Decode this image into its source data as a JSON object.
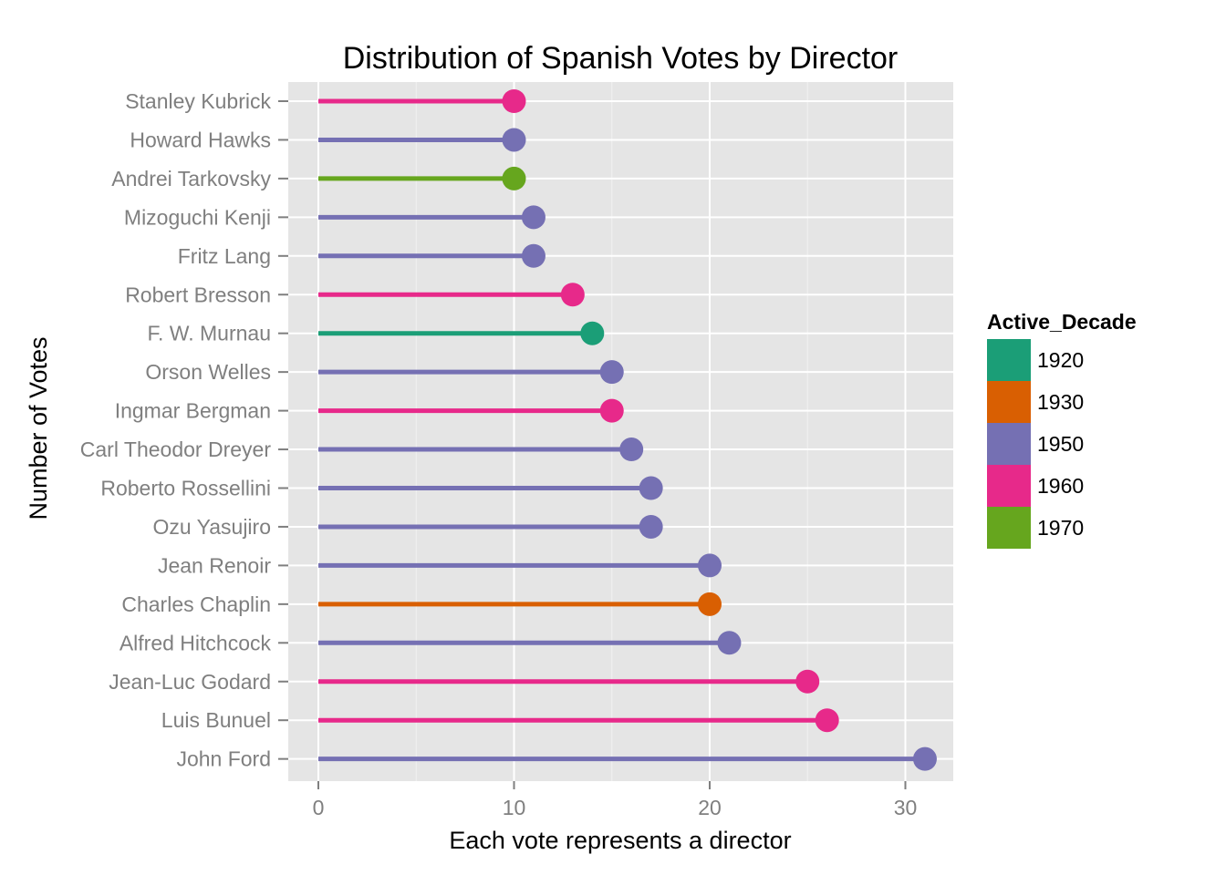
{
  "chart_data": {
    "type": "lollipop",
    "title": "Distribution of Spanish Votes by Director",
    "xlabel": "Each vote represents a director",
    "ylabel": "Number of Votes",
    "xlim": [
      0,
      32
    ],
    "x_ticks": [
      "0",
      "10",
      "20",
      "30"
    ],
    "grid": true,
    "legend": {
      "title": "Active_Decade",
      "position": "right",
      "entries": [
        {
          "label": "1920",
          "color": "#1B9E77"
        },
        {
          "label": "1930",
          "color": "#D95F02"
        },
        {
          "label": "1950",
          "color": "#7570B3"
        },
        {
          "label": "1960",
          "color": "#E7298A"
        },
        {
          "label": "1970",
          "color": "#66A61E"
        }
      ]
    },
    "points": [
      {
        "director": "Stanley Kubrick",
        "votes": 10,
        "decade": "1960"
      },
      {
        "director": "Howard Hawks",
        "votes": 10,
        "decade": "1950"
      },
      {
        "director": "Andrei Tarkovsky",
        "votes": 10,
        "decade": "1970"
      },
      {
        "director": "Mizoguchi Kenji",
        "votes": 11,
        "decade": "1950"
      },
      {
        "director": "Fritz Lang",
        "votes": 11,
        "decade": "1950"
      },
      {
        "director": "Robert Bresson",
        "votes": 13,
        "decade": "1960"
      },
      {
        "director": "F. W. Murnau",
        "votes": 14,
        "decade": "1920"
      },
      {
        "director": "Orson Welles",
        "votes": 15,
        "decade": "1950"
      },
      {
        "director": "Ingmar Bergman",
        "votes": 15,
        "decade": "1960"
      },
      {
        "director": "Carl Theodor Dreyer",
        "votes": 16,
        "decade": "1950"
      },
      {
        "director": "Roberto Rossellini",
        "votes": 17,
        "decade": "1950"
      },
      {
        "director": "Ozu Yasujiro",
        "votes": 17,
        "decade": "1950"
      },
      {
        "director": "Jean Renoir",
        "votes": 20,
        "decade": "1950"
      },
      {
        "director": "Charles Chaplin",
        "votes": 20,
        "decade": "1930"
      },
      {
        "director": "Alfred Hitchcock",
        "votes": 21,
        "decade": "1950"
      },
      {
        "director": "Jean-Luc Godard",
        "votes": 25,
        "decade": "1960"
      },
      {
        "director": "Luis Bunuel",
        "votes": 26,
        "decade": "1960"
      },
      {
        "director": "John Ford",
        "votes": 31,
        "decade": "1950"
      }
    ]
  }
}
